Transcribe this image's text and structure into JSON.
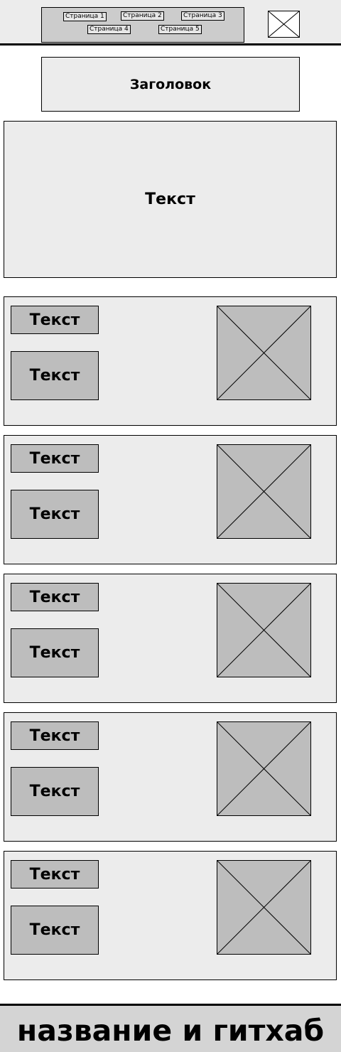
{
  "header": {
    "nav": [
      "Страница 1",
      "Страница 2",
      "Страница 3",
      "Страница 4",
      "Страница 5"
    ],
    "logo_icon": "image-placeholder-icon"
  },
  "title": "Заголовок",
  "intro": "Текст",
  "cards": [
    {
      "text_top": "Текст",
      "text_bottom": "Текст",
      "image_icon": "image-placeholder-icon"
    },
    {
      "text_top": "Текст",
      "text_bottom": "Текст",
      "image_icon": "image-placeholder-icon"
    },
    {
      "text_top": "Текст",
      "text_bottom": "Текст",
      "image_icon": "image-placeholder-icon"
    },
    {
      "text_top": "Текст",
      "text_bottom": "Текст",
      "image_icon": "image-placeholder-icon"
    },
    {
      "text_top": "Текст",
      "text_bottom": "Текст",
      "image_icon": "image-placeholder-icon"
    }
  ],
  "footer": "название и гитхаб",
  "colors": {
    "header_bg": "#ececec",
    "nav_bg": "#cccccc",
    "panel_bg": "#ececec",
    "placeholder_bg": "#bdbdbd",
    "footer_bg": "#d4d4d4",
    "stroke": "#000000"
  }
}
